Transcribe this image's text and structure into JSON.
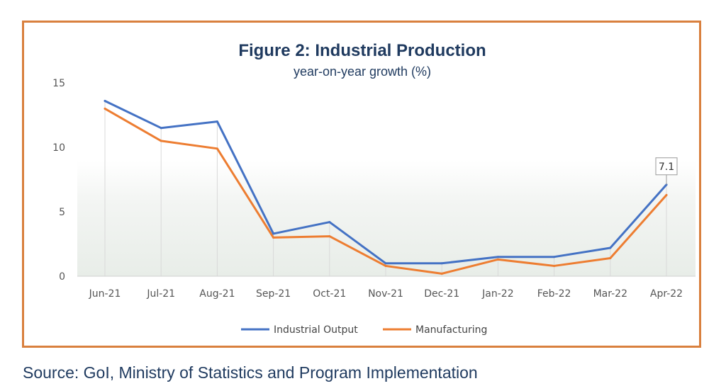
{
  "chart_data": {
    "type": "line",
    "title": "Figure 2: Industrial Production",
    "subtitle": "year-on-year growth (%)",
    "categories": [
      "Jun-21",
      "Jul-21",
      "Aug-21",
      "Sep-21",
      "Oct-21",
      "Nov-21",
      "Dec-21",
      "Jan-22",
      "Feb-22",
      "Mar-22",
      "Apr-22"
    ],
    "ylim": [
      0,
      15
    ],
    "yticks": [
      0,
      5,
      10,
      15
    ],
    "series": [
      {
        "name": "Industrial Output",
        "color": "#4472c4",
        "values": [
          13.6,
          11.5,
          12.0,
          3.3,
          4.2,
          1.0,
          1.0,
          1.5,
          1.5,
          2.2,
          7.1
        ]
      },
      {
        "name": "Manufacturing",
        "color": "#ed7d31",
        "values": [
          13.0,
          10.5,
          9.9,
          3.0,
          3.1,
          0.8,
          0.2,
          1.3,
          0.8,
          1.4,
          6.3
        ]
      }
    ],
    "annotations": [
      {
        "series": "Industrial Output",
        "category": "Apr-22",
        "text": "7.1"
      }
    ],
    "legend_position": "bottom",
    "grid": false
  },
  "source": "Source: GoI, Ministry of Statistics and Program Implementation",
  "colors": {
    "frame": "#d9803e",
    "title": "#1f3a5f"
  }
}
